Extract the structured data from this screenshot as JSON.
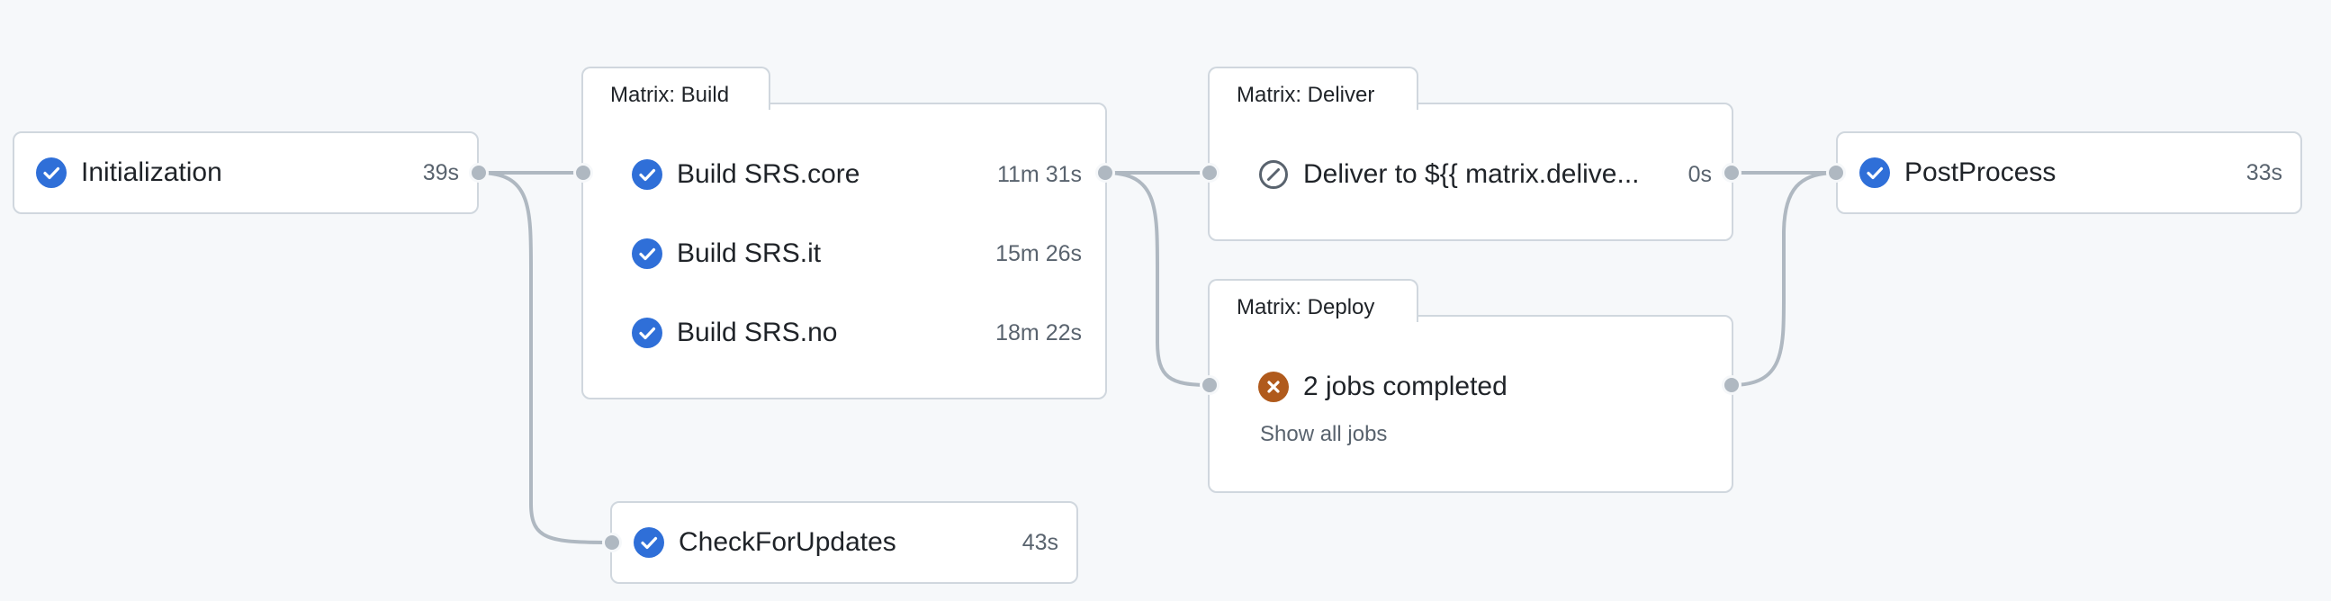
{
  "jobs": {
    "initialization": {
      "name": "Initialization",
      "time": "39s",
      "status": "success"
    },
    "check_for_updates": {
      "name": "CheckForUpdates",
      "time": "43s",
      "status": "success"
    },
    "post_process": {
      "name": "PostProcess",
      "time": "33s",
      "status": "success"
    }
  },
  "groups": {
    "build": {
      "title": "Matrix: Build",
      "jobs": [
        {
          "name": "Build SRS.core",
          "time": "11m 31s",
          "status": "success"
        },
        {
          "name": "Build SRS.it",
          "time": "15m 26s",
          "status": "success"
        },
        {
          "name": "Build SRS.no",
          "time": "18m 22s",
          "status": "success"
        }
      ]
    },
    "deliver": {
      "title": "Matrix: Deliver",
      "jobs": [
        {
          "name": "Deliver to ${{ matrix.delive...",
          "time": "0s",
          "status": "skipped"
        }
      ]
    },
    "deploy": {
      "title": "Matrix: Deploy",
      "summary": "2 jobs completed",
      "summary_status": "failure",
      "show_all_label": "Show all jobs"
    }
  },
  "icons": {
    "success": "check-circle-icon",
    "skipped": "skip-icon",
    "failure": "x-circle-icon"
  },
  "colors": {
    "success": "#2f6fd8",
    "failure": "#b05a1c",
    "skipped": "#59636e",
    "edge": "#afb8c1",
    "border": "#d0d7de",
    "background": "#f6f8fa"
  }
}
